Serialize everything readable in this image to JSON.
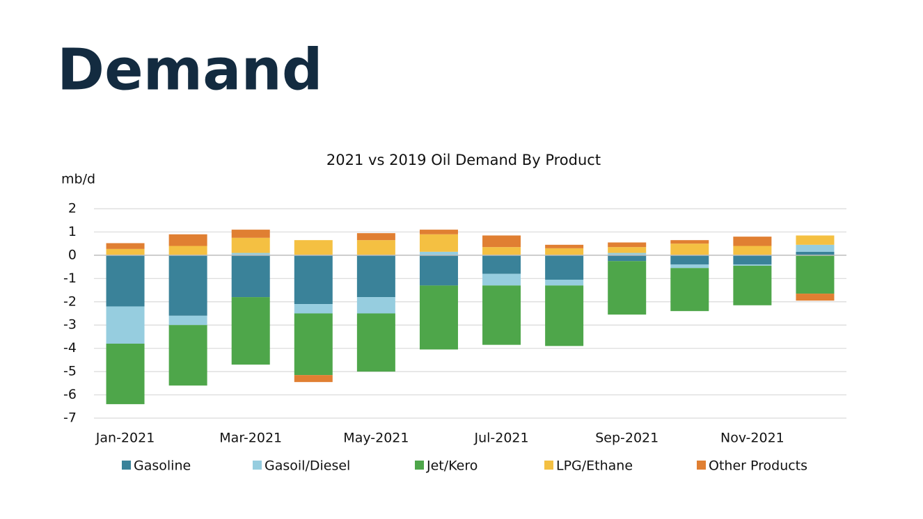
{
  "page_title": "Demand",
  "chart_data": {
    "type": "stacked_bar",
    "title": "2021 vs 2019 Oil Demand By Product",
    "ylabel": "mb/d",
    "categories": [
      "Jan-2021",
      null,
      "Mar-2021",
      null,
      "May-2021",
      null,
      "Jul-2021",
      null,
      "Sep-2021",
      null,
      "Nov-2021",
      null
    ],
    "series": [
      {
        "name": "Gasoline",
        "color": "#3a8299",
        "values": [
          -2.2,
          -2.6,
          -1.8,
          -2.1,
          -1.8,
          -1.3,
          -0.8,
          -1.05,
          -0.25,
          -0.4,
          -0.4,
          0.15
        ]
      },
      {
        "name": "Gasoil/Diesel",
        "color": "#96cddf",
        "values": [
          -1.6,
          -0.4,
          0.1,
          -0.4,
          -0.7,
          0.15,
          -0.5,
          -0.25,
          0.1,
          -0.15,
          -0.05,
          0.3
        ]
      },
      {
        "name": "Jet/Kero",
        "color": "#4ea64a",
        "values": [
          -2.6,
          -2.6,
          -2.9,
          -2.65,
          -2.5,
          -2.75,
          -2.55,
          -2.6,
          -2.3,
          -1.85,
          -1.7,
          -1.65
        ]
      },
      {
        "name": "LPG/Ethane",
        "color": "#f4c042",
        "values": [
          0.27,
          0.4,
          0.65,
          0.65,
          0.65,
          0.75,
          0.35,
          0.3,
          0.25,
          0.5,
          0.4,
          0.4
        ]
      },
      {
        "name": "Other Products",
        "color": "#e07f32",
        "values": [
          0.25,
          0.5,
          0.35,
          -0.3,
          0.3,
          0.2,
          0.5,
          0.15,
          0.2,
          0.15,
          0.4,
          -0.3
        ]
      }
    ],
    "ylim": [
      -7,
      2
    ],
    "yticks": [
      -7,
      -6,
      -5,
      -4,
      -3,
      -2,
      -1,
      0,
      1,
      2
    ],
    "grid": true,
    "legend": "bottom"
  }
}
